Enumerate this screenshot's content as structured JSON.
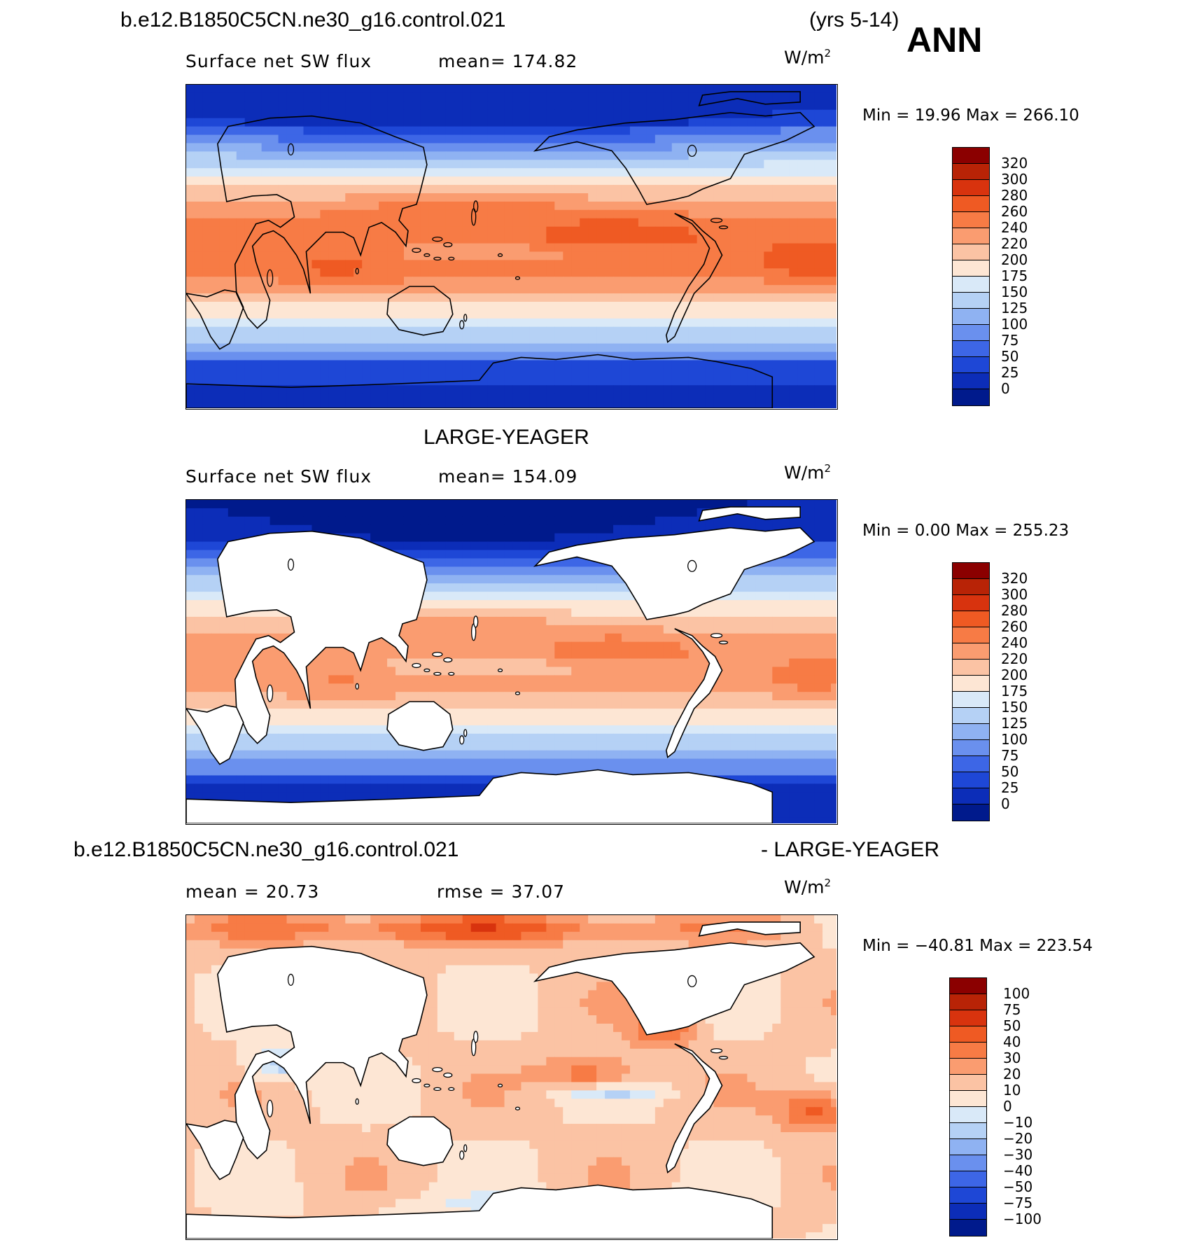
{
  "header": {
    "case_name": "b.e12.B1850C5CN.ne30_g16.control.021",
    "years": "(yrs 5-14)",
    "season": "ANN"
  },
  "panels": [
    {
      "title": "",
      "var_label": "Surface net SW flux",
      "stat_label": "mean= 174.82",
      "unit_base": "W/m",
      "unit_exp": "2",
      "minmax": "Min =   19.96 Max =  266.10",
      "field": "model",
      "colorbar": {
        "labels": [
          "320",
          "300",
          "280",
          "260",
          "240",
          "220",
          "200",
          "175",
          "150",
          "125",
          "100",
          "75",
          "50",
          "25",
          "0"
        ],
        "colors": [
          "#8b0000",
          "#b82306",
          "#d8330e",
          "#ef5a23",
          "#f77b45",
          "#fa9c70",
          "#fbc3a4",
          "#fde6d4",
          "#d9e9f8",
          "#b5d1f5",
          "#8fb2f2",
          "#6a90ee",
          "#3d66e6",
          "#1e47d6",
          "#0c2db8",
          "#001a8c"
        ]
      }
    },
    {
      "title": "LARGE-YEAGER",
      "var_label": "Surface net SW flux",
      "stat_label": "mean= 154.09",
      "unit_base": "W/m",
      "unit_exp": "2",
      "minmax": "Min =    0.00 Max =  255.23",
      "field": "obs",
      "colorbar": {
        "labels": [
          "320",
          "300",
          "280",
          "260",
          "240",
          "220",
          "200",
          "175",
          "150",
          "125",
          "100",
          "75",
          "50",
          "25",
          "0"
        ],
        "colors": [
          "#8b0000",
          "#b82306",
          "#d8330e",
          "#ef5a23",
          "#f77b45",
          "#fa9c70",
          "#fbc3a4",
          "#fde6d4",
          "#d9e9f8",
          "#b5d1f5",
          "#8fb2f2",
          "#6a90ee",
          "#3d66e6",
          "#1e47d6",
          "#0c2db8",
          "#001a8c"
        ]
      }
    },
    {
      "title_left": "b.e12.B1850C5CN.ne30_g16.control.021",
      "title_right": "- LARGE-YEAGER",
      "var_label": "mean =   20.73",
      "stat_label": "rmse =   37.07",
      "unit_base": "W/m",
      "unit_exp": "2",
      "minmax": "Min = −40.81  Max =  223.54",
      "field": "diff",
      "colorbar": {
        "labels": [
          "100",
          "75",
          "50",
          "40",
          "30",
          "20",
          "10",
          "0",
          "−10",
          "−20",
          "−30",
          "−40",
          "−50",
          "−75",
          "−100"
        ],
        "colors": [
          "#8b0000",
          "#b82306",
          "#d8330e",
          "#ef5a23",
          "#f77b45",
          "#fa9c70",
          "#fbc3a4",
          "#fde6d4",
          "#d9e9f8",
          "#b5d1f5",
          "#8fb2f2",
          "#6a90ee",
          "#3d66e6",
          "#1e47d6",
          "#0c2db8",
          "#001a8c"
        ]
      }
    }
  ]
}
